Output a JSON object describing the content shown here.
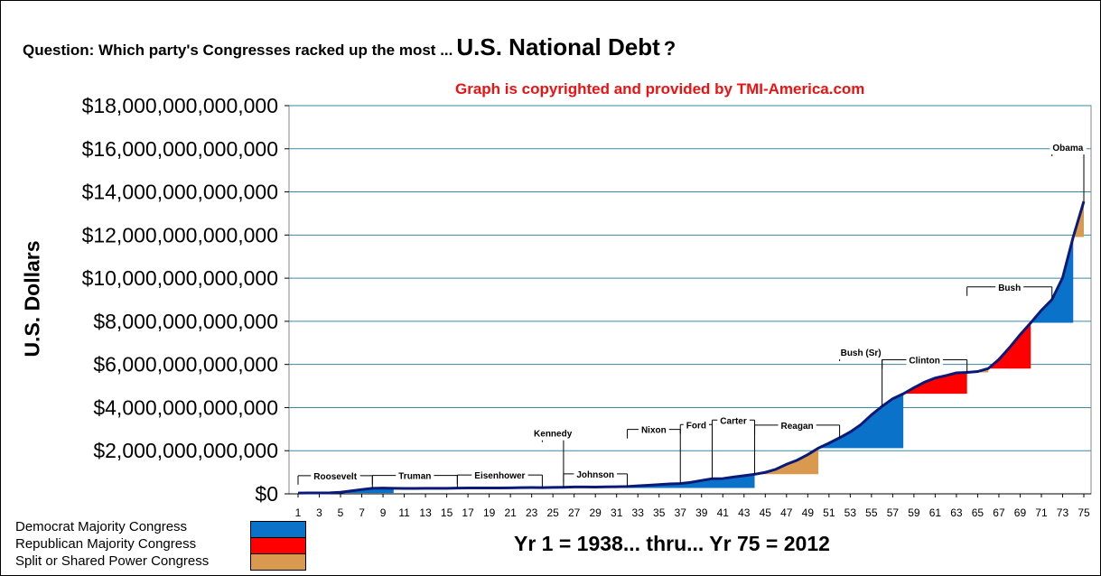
{
  "title": {
    "prefix": "Question: Which party's Congresses racked up the most ...",
    "emphasis": "U.S. National Debt",
    "suffix": "?"
  },
  "copyright_note": "Graph is copyrighted and provided by TMI-America.com",
  "colors": {
    "democrat": "#0a72c8",
    "republican": "#ff0000",
    "split": "#d99a50",
    "debt_line": "#0b1a78",
    "gridline": "#3a8aa0"
  },
  "legend": [
    {
      "label": "Democrat Majority Congress",
      "color": "#0a72c8"
    },
    {
      "label": "Republican Majority Congress",
      "color": "#ff0000"
    },
    {
      "label": "Split or Shared Power Congress",
      "color": "#d99a50"
    }
  ],
  "chart_data": {
    "type": "area",
    "title": "U.S. National Debt",
    "xlabel": "Yr 1 = 1938... thru... Yr 75 = 2012",
    "ylabel": "U.S. Dollars",
    "xlim": [
      1,
      75
    ],
    "ylim": [
      0,
      18000000000000
    ],
    "x_tick_labels": [
      "1",
      "3",
      "5",
      "7",
      "9",
      "11",
      "13",
      "15",
      "17",
      "19",
      "21",
      "23",
      "25",
      "27",
      "29",
      "31",
      "33",
      "35",
      "37",
      "39",
      "41",
      "43",
      "45",
      "47",
      "49",
      "51",
      "53",
      "55",
      "57",
      "59",
      "61",
      "63",
      "65",
      "67",
      "69",
      "71",
      "73",
      "75"
    ],
    "y_tick_labels": [
      "$0",
      "$2,000,000,000,000",
      "$4,000,000,000,000",
      "$6,000,000,000,000",
      "$8,000,000,000,000",
      "$10,000,000,000,000",
      "$12,000,000,000,000",
      "$14,000,000,000,000",
      "$16,000,000,000,000",
      "$18,000,000,000,000"
    ],
    "y_tick_values": [
      0,
      2000000000000,
      4000000000000,
      6000000000000,
      8000000000000,
      10000000000000,
      12000000000000,
      14000000000000,
      16000000000000,
      18000000000000
    ],
    "grid": true,
    "series": [
      {
        "name": "U.S. National Debt",
        "x": [
          1,
          2,
          3,
          4,
          5,
          6,
          7,
          8,
          9,
          10,
          11,
          12,
          13,
          14,
          15,
          16,
          17,
          18,
          19,
          20,
          21,
          22,
          23,
          24,
          25,
          26,
          27,
          28,
          29,
          30,
          31,
          32,
          33,
          34,
          35,
          36,
          37,
          38,
          39,
          40,
          41,
          42,
          43,
          44,
          45,
          46,
          47,
          48,
          49,
          50,
          51,
          52,
          53,
          54,
          55,
          56,
          57,
          58,
          59,
          60,
          61,
          62,
          63,
          64,
          65,
          66,
          67,
          68,
          69,
          70,
          71,
          72,
          73,
          74,
          75
        ],
        "values": [
          37000000000,
          40000000000,
          43000000000,
          49000000000,
          72000000000,
          136000000000,
          201000000000,
          258000000000,
          269000000000,
          258000000000,
          252000000000,
          252000000000,
          257000000000,
          255000000000,
          259000000000,
          266000000000,
          271000000000,
          274000000000,
          273000000000,
          272000000000,
          279000000000,
          287000000000,
          291000000000,
          289000000000,
          298000000000,
          306000000000,
          317000000000,
          320000000000,
          316000000000,
          322000000000,
          329000000000,
          341000000000,
          370000000000,
          398000000000,
          427000000000,
          458000000000,
          475000000000,
          533000000000,
          620000000000,
          699000000000,
          709000000000,
          780000000000,
          843000000000,
          908000000000,
          995000000000,
          1140000000000,
          1370000000000,
          1560000000000,
          1820000000000,
          2120000000000,
          2350000000000,
          2600000000000,
          2870000000000,
          3210000000000,
          3660000000000,
          4060000000000,
          4410000000000,
          4640000000000,
          4920000000000,
          5180000000000,
          5370000000000,
          5480000000000,
          5610000000000,
          5630000000000,
          5670000000000,
          5810000000000,
          6230000000000,
          6780000000000,
          7380000000000,
          7930000000000,
          8510000000000,
          9010000000000,
          10020000000000,
          11910000000000,
          13560000000000
        ]
      }
    ],
    "congress_control": [
      {
        "from_year": 1,
        "to_year": 10,
        "party": "democrat"
      },
      {
        "from_year": 10,
        "to_year": 12,
        "party": "republican"
      },
      {
        "from_year": 12,
        "to_year": 16,
        "party": "democrat"
      },
      {
        "from_year": 16,
        "to_year": 18,
        "party": "republican"
      },
      {
        "from_year": 18,
        "to_year": 44,
        "party": "democrat"
      },
      {
        "from_year": 44,
        "to_year": 50,
        "party": "split"
      },
      {
        "from_year": 50,
        "to_year": 58,
        "party": "democrat"
      },
      {
        "from_year": 58,
        "to_year": 64,
        "party": "republican"
      },
      {
        "from_year": 64,
        "to_year": 66,
        "party": "split"
      },
      {
        "from_year": 66,
        "to_year": 70,
        "party": "republican"
      },
      {
        "from_year": 70,
        "to_year": 74,
        "party": "democrat"
      },
      {
        "from_year": 74,
        "to_year": 76,
        "party": "split"
      }
    ],
    "president_labels": [
      {
        "name": "Roosevelt",
        "start_year": 1,
        "end_year": 8
      },
      {
        "name": "Truman",
        "start_year": 8,
        "end_year": 16
      },
      {
        "name": "Eisenhower",
        "start_year": 16,
        "end_year": 24
      },
      {
        "name": "Kennedy",
        "start_year": 24,
        "end_year": 26
      },
      {
        "name": "Johnson",
        "start_year": 26,
        "end_year": 32
      },
      {
        "name": "Nixon",
        "start_year": 32,
        "end_year": 37
      },
      {
        "name": "Ford",
        "start_year": 37,
        "end_year": 40
      },
      {
        "name": "Carter",
        "start_year": 40,
        "end_year": 44
      },
      {
        "name": "Reagan",
        "start_year": 44,
        "end_year": 52
      },
      {
        "name": "Bush (Sr)",
        "start_year": 52,
        "end_year": 56
      },
      {
        "name": "Clinton",
        "start_year": 56,
        "end_year": 64
      },
      {
        "name": "Bush",
        "start_year": 64,
        "end_year": 72
      },
      {
        "name": "Obama",
        "start_year": 72,
        "end_year": 75
      }
    ]
  }
}
